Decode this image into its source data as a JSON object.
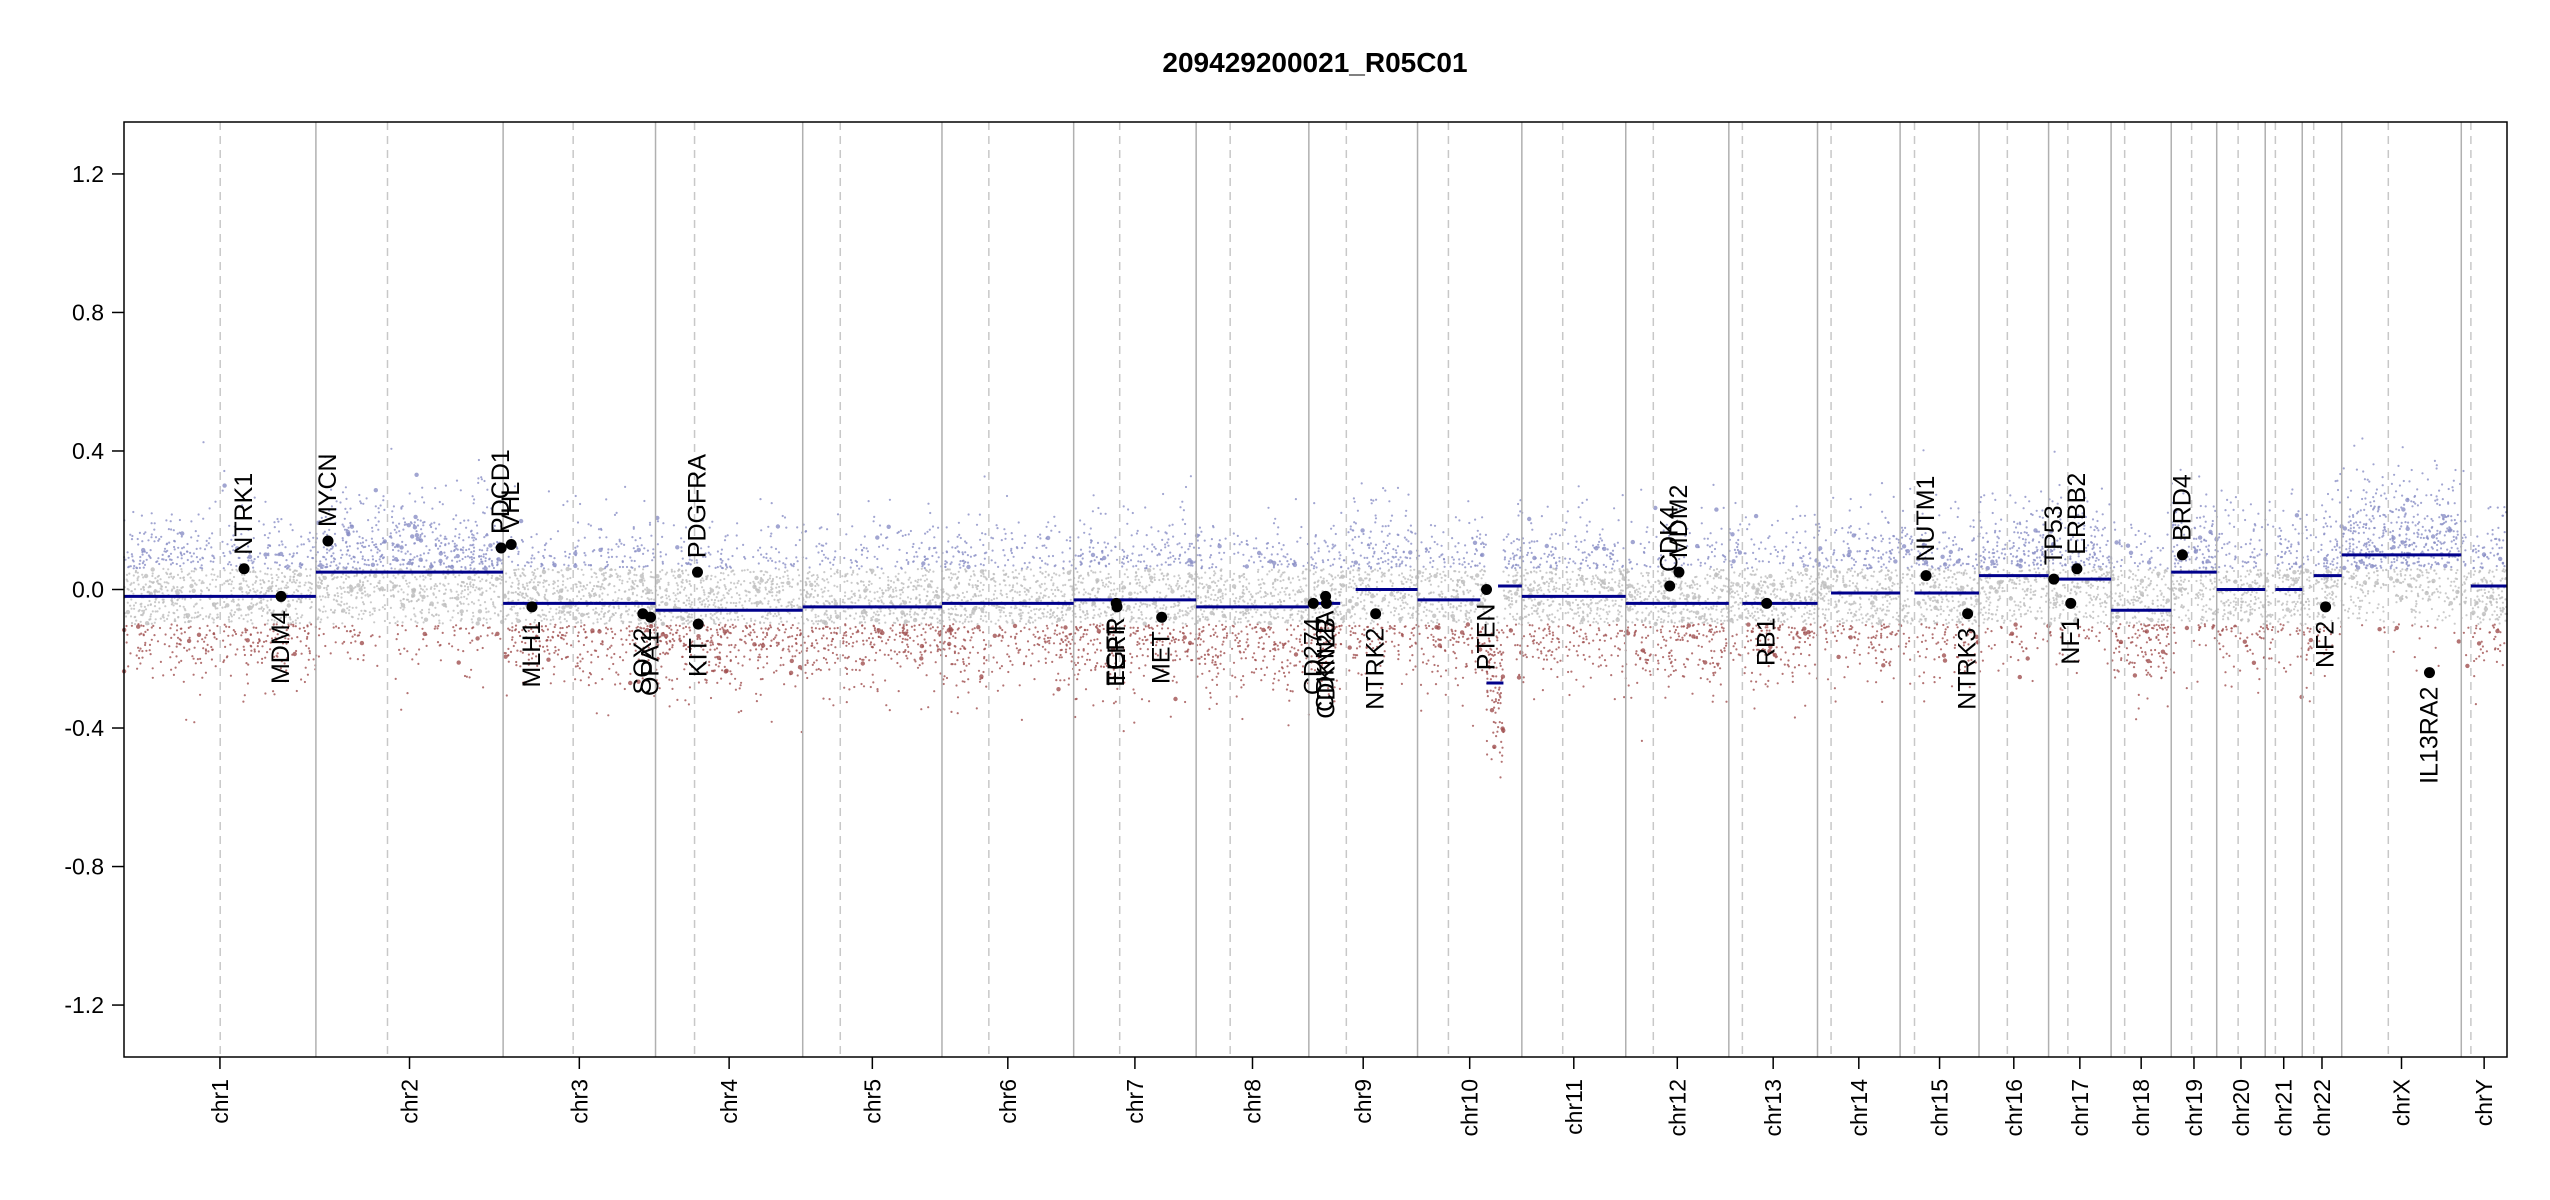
{
  "chart_data": {
    "type": "scatter",
    "title": "209429200021_R05C01",
    "xlabel": "",
    "ylabel": "",
    "ylim": [
      -1.35,
      1.35
    ],
    "y_ticks": [
      1.2,
      0.8,
      0.4,
      0.0,
      -0.4,
      -0.8,
      -1.2
    ],
    "y_tick_labels": [
      "1.2",
      "0.8",
      "0.4",
      "0.0",
      "-0.4",
      "-0.8",
      "-1.2"
    ],
    "grid": false,
    "colors": {
      "segment": "#00008b",
      "gain_probe": "#8a8fc6",
      "neutral_probe": "#bdbdbd",
      "loss_probe": "#a05050",
      "gene_point": "#000000",
      "chrom_border": "#b0b0b0",
      "centromere": "#c8c8c8"
    },
    "chromosomes": [
      {
        "name": "chr1",
        "label": "chr1",
        "start": 0.0,
        "end": 249.3,
        "centromere": 125.0
      },
      {
        "name": "chr2",
        "label": "chr2",
        "start": 249.3,
        "end": 492.5,
        "centromere": 342.3
      },
      {
        "name": "chr3",
        "label": "chr3",
        "start": 492.5,
        "end": 690.5,
        "centromere": 583.5
      },
      {
        "name": "chr4",
        "label": "chr4",
        "start": 690.5,
        "end": 881.7,
        "centromere": 741.2
      },
      {
        "name": "chr5",
        "label": "chr5",
        "start": 881.7,
        "end": 1062.6,
        "centromere": 930.5
      },
      {
        "name": "chr6",
        "label": "chr6",
        "start": 1062.6,
        "end": 1233.7,
        "centromere": 1123.5
      },
      {
        "name": "chr7",
        "label": "chr7",
        "start": 1233.7,
        "end": 1392.8,
        "centromere": 1293.5
      },
      {
        "name": "chr8",
        "label": "chr8",
        "start": 1392.8,
        "end": 1539.2,
        "centromere": 1437.0
      },
      {
        "name": "chr9",
        "label": "chr9",
        "start": 1539.2,
        "end": 1680.4,
        "centromere": 1587.9
      },
      {
        "name": "chr10",
        "label": "chr10",
        "start": 1680.4,
        "end": 1815.9,
        "centromere": 1720.5
      },
      {
        "name": "chr11",
        "label": "chr11",
        "start": 1815.9,
        "end": 1950.9,
        "centromere": 1869.0
      },
      {
        "name": "chr12",
        "label": "chr12",
        "start": 1950.9,
        "end": 2084.8,
        "centromere": 1986.7
      },
      {
        "name": "chr13",
        "label": "chr13",
        "start": 2084.8,
        "end": 2200.0,
        "centromere": 2102.4
      },
      {
        "name": "chr14",
        "label": "chr14",
        "start": 2200.0,
        "end": 2307.3,
        "centromere": 2217.6
      },
      {
        "name": "chr15",
        "label": "chr15",
        "start": 2307.3,
        "end": 2409.8,
        "centromere": 2326.0
      },
      {
        "name": "chr16",
        "label": "chr16",
        "start": 2409.8,
        "end": 2500.2,
        "centromere": 2446.6
      },
      {
        "name": "chr17",
        "label": "chr17",
        "start": 2500.2,
        "end": 2581.4,
        "centromere": 2525.2
      },
      {
        "name": "chr18",
        "label": "chr18",
        "start": 2581.4,
        "end": 2659.5,
        "centromere": 2599.0
      },
      {
        "name": "chr19",
        "label": "chr19",
        "start": 2659.5,
        "end": 2718.6,
        "centromere": 2686.0
      },
      {
        "name": "chr20",
        "label": "chr20",
        "start": 2718.6,
        "end": 2781.6,
        "centromere": 2746.4
      },
      {
        "name": "chr21",
        "label": "chr21",
        "start": 2781.6,
        "end": 2829.7,
        "centromere": 2794.8
      },
      {
        "name": "chr22",
        "label": "chr22",
        "start": 2829.7,
        "end": 2881.0,
        "centromere": 2844.6
      },
      {
        "name": "chrX",
        "label": "chrX",
        "start": 2881.0,
        "end": 3036.3,
        "centromere": 2941.5
      },
      {
        "name": "chrY",
        "label": "chrY",
        "start": 3036.3,
        "end": 3095.7,
        "centromere": 3048.8
      }
    ],
    "segments": [
      {
        "chrom": "chr1",
        "start": 0.0,
        "end": 249.3,
        "value": -0.02
      },
      {
        "chrom": "chr2",
        "start": 249.3,
        "end": 492.5,
        "value": 0.05
      },
      {
        "chrom": "chr3",
        "start": 492.5,
        "end": 610.0,
        "value": -0.04
      },
      {
        "chrom": "chr3",
        "start": 610.0,
        "end": 690.5,
        "value": -0.04
      },
      {
        "chrom": "chr4",
        "start": 690.5,
        "end": 881.7,
        "value": -0.06
      },
      {
        "chrom": "chr5",
        "start": 881.7,
        "end": 1062.6,
        "value": -0.05
      },
      {
        "chrom": "chr6",
        "start": 1062.6,
        "end": 1233.7,
        "value": -0.04
      },
      {
        "chrom": "chr7",
        "start": 1233.7,
        "end": 1392.8,
        "value": -0.03
      },
      {
        "chrom": "chr8",
        "start": 1392.8,
        "end": 1539.2,
        "value": -0.05
      },
      {
        "chrom": "chr9",
        "start": 1539.2,
        "end": 1580.0,
        "value": -0.04
      },
      {
        "chrom": "chr9",
        "start": 1600.0,
        "end": 1680.4,
        "value": 0.0
      },
      {
        "chrom": "chr10",
        "start": 1680.4,
        "end": 1762.0,
        "value": -0.03
      },
      {
        "chrom": "chr10",
        "start": 1770.0,
        "end": 1792.0,
        "value": -0.27
      },
      {
        "chrom": "chr10",
        "start": 1785.0,
        "end": 1815.9,
        "value": 0.01
      },
      {
        "chrom": "chr11",
        "start": 1815.9,
        "end": 1950.9,
        "value": -0.02
      },
      {
        "chrom": "chr12",
        "start": 1950.9,
        "end": 2084.8,
        "value": -0.04
      },
      {
        "chrom": "chr13",
        "start": 2102.4,
        "end": 2200.0,
        "value": -0.04
      },
      {
        "chrom": "chr14",
        "start": 2217.6,
        "end": 2307.3,
        "value": -0.01
      },
      {
        "chrom": "chr15",
        "start": 2326.0,
        "end": 2409.8,
        "value": -0.01
      },
      {
        "chrom": "chr16",
        "start": 2409.8,
        "end": 2500.2,
        "value": 0.04
      },
      {
        "chrom": "chr17",
        "start": 2500.2,
        "end": 2581.4,
        "value": 0.03
      },
      {
        "chrom": "chr18",
        "start": 2581.4,
        "end": 2659.5,
        "value": -0.06
      },
      {
        "chrom": "chr19",
        "start": 2659.5,
        "end": 2718.6,
        "value": 0.05
      },
      {
        "chrom": "chr20",
        "start": 2718.6,
        "end": 2781.6,
        "value": 0.0
      },
      {
        "chrom": "chr21",
        "start": 2794.8,
        "end": 2829.7,
        "value": 0.0
      },
      {
        "chrom": "chr22",
        "start": 2844.6,
        "end": 2881.0,
        "value": 0.04
      },
      {
        "chrom": "chrX",
        "start": 2881.0,
        "end": 3036.3,
        "value": 0.1
      },
      {
        "chrom": "chrY",
        "start": 3048.8,
        "end": 3095.7,
        "value": 0.01
      }
    ],
    "genes": [
      {
        "name": "NTRK1",
        "pos": 156.0,
        "value": 0.06,
        "side": "above"
      },
      {
        "name": "MDM4",
        "pos": 204.0,
        "value": -0.02,
        "side": "below"
      },
      {
        "name": "MYCN",
        "pos": 265.0,
        "value": 0.14,
        "side": "above"
      },
      {
        "name": "PDCD1",
        "pos": 490.0,
        "value": 0.12,
        "side": "above"
      },
      {
        "name": "VHL",
        "pos": 503.0,
        "value": 0.13,
        "side": "above"
      },
      {
        "name": "MLH1",
        "pos": 530.0,
        "value": -0.05,
        "side": "below"
      },
      {
        "name": "SOX2",
        "pos": 674.0,
        "value": -0.07,
        "side": "below"
      },
      {
        "name": "OPA1",
        "pos": 684.0,
        "value": -0.08,
        "side": "below"
      },
      {
        "name": "PDGFRA",
        "pos": 745.0,
        "value": 0.05,
        "side": "above"
      },
      {
        "name": "KIT",
        "pos": 746.0,
        "value": -0.1,
        "side": "below"
      },
      {
        "name": "EGFR",
        "pos": 1289.0,
        "value": -0.04,
        "side": "below"
      },
      {
        "name": "TERT",
        "pos": 1290.0,
        "value": -0.05,
        "side": "below"
      },
      {
        "name": "MET",
        "pos": 1348.0,
        "value": -0.08,
        "side": "below"
      },
      {
        "name": "CD274",
        "pos": 1545.0,
        "value": -0.04,
        "side": "below"
      },
      {
        "name": "CDKN2A",
        "pos": 1561.0,
        "value": -0.02,
        "side": "below"
      },
      {
        "name": "CDKN2B",
        "pos": 1562.0,
        "value": -0.04,
        "side": "below"
      },
      {
        "name": "NTRK2",
        "pos": 1626.0,
        "value": -0.07,
        "side": "below"
      },
      {
        "name": "PTEN",
        "pos": 1770.0,
        "value": 0.0,
        "side": "below"
      },
      {
        "name": "CDK4",
        "pos": 2008.0,
        "value": 0.01,
        "side": "above"
      },
      {
        "name": "MDM2",
        "pos": 2020.0,
        "value": 0.05,
        "side": "above"
      },
      {
        "name": "RB1",
        "pos": 2134.0,
        "value": -0.04,
        "side": "below"
      },
      {
        "name": "NUTM1",
        "pos": 2341.0,
        "value": 0.04,
        "side": "above"
      },
      {
        "name": "NTRK3",
        "pos": 2395.0,
        "value": -0.07,
        "side": "below"
      },
      {
        "name": "TP53",
        "pos": 2507.0,
        "value": 0.03,
        "side": "above"
      },
      {
        "name": "NF1",
        "pos": 2529.0,
        "value": -0.04,
        "side": "below"
      },
      {
        "name": "ERBB2",
        "pos": 2537.0,
        "value": 0.06,
        "side": "above"
      },
      {
        "name": "BRD4",
        "pos": 2674.0,
        "value": 0.1,
        "side": "above"
      },
      {
        "name": "NF2",
        "pos": 2860.0,
        "value": -0.05,
        "side": "below"
      },
      {
        "name": "IL13RA2",
        "pos": 2995.0,
        "value": -0.24,
        "side": "below"
      }
    ]
  }
}
